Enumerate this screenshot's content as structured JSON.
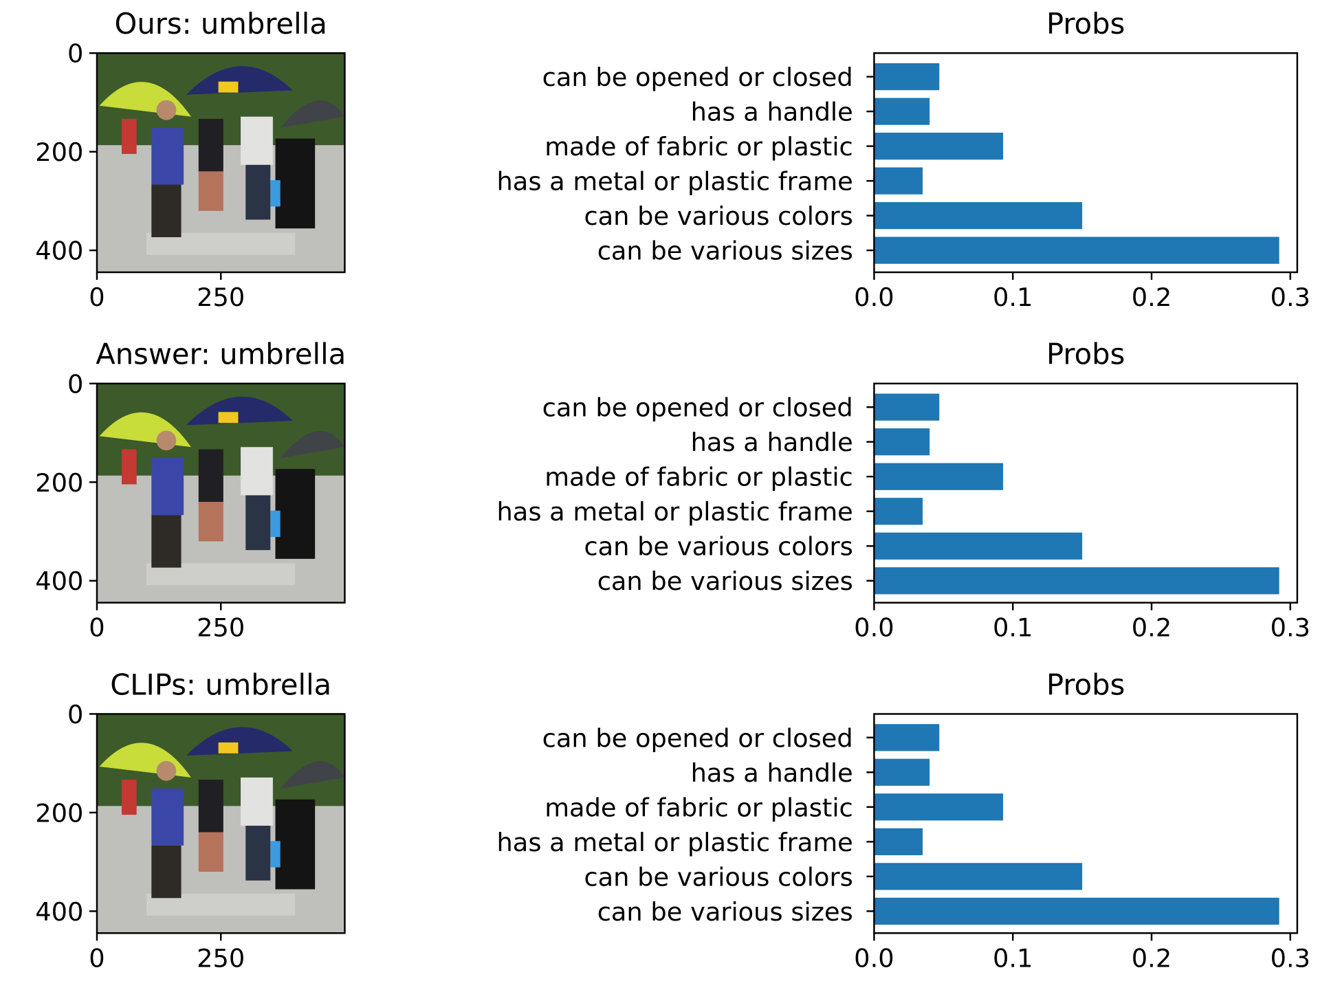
{
  "colors": {
    "bar": "#1f77b4",
    "axis": "#000000",
    "background": "#ffffff"
  },
  "rows": [
    {
      "image_panel": {
        "title": "Ours: umbrella",
        "y_ticks": [
          "0",
          "200",
          "400"
        ],
        "x_ticks": [
          "0",
          "250"
        ]
      },
      "bar_title": "Probs"
    },
    {
      "image_panel": {
        "title": "Answer: umbrella",
        "y_ticks": [
          "0",
          "200",
          "400"
        ],
        "x_ticks": [
          "0",
          "250"
        ]
      },
      "bar_title": "Probs"
    },
    {
      "image_panel": {
        "title": "CLIPs: umbrella",
        "y_ticks": [
          "0",
          "200",
          "400"
        ],
        "x_ticks": [
          "0",
          "250"
        ]
      },
      "bar_title": "Probs"
    }
  ],
  "chart_data": [
    {
      "type": "bar",
      "orientation": "horizontal",
      "title": "Probs",
      "categories": [
        "can be opened or closed",
        "has a handle",
        "made of fabric or plastic",
        "has a metal or plastic frame",
        "can be various colors",
        "can be various sizes"
      ],
      "values": [
        0.047,
        0.04,
        0.093,
        0.035,
        0.15,
        0.292
      ],
      "xlim": [
        0,
        0.305
      ],
      "x_ticks": [
        "0.0",
        "0.1",
        "0.2",
        "0.3"
      ],
      "grid": false
    },
    {
      "type": "bar",
      "orientation": "horizontal",
      "title": "Probs",
      "categories": [
        "can be opened or closed",
        "has a handle",
        "made of fabric or plastic",
        "has a metal or plastic frame",
        "can be various colors",
        "can be various sizes"
      ],
      "values": [
        0.047,
        0.04,
        0.093,
        0.035,
        0.15,
        0.292
      ],
      "xlim": [
        0,
        0.305
      ],
      "x_ticks": [
        "0.0",
        "0.1",
        "0.2",
        "0.3"
      ],
      "grid": false
    },
    {
      "type": "bar",
      "orientation": "horizontal",
      "title": "Probs",
      "categories": [
        "can be opened or closed",
        "has a handle",
        "made of fabric or plastic",
        "has a metal or plastic frame",
        "can be various colors",
        "can be various sizes"
      ],
      "values": [
        0.047,
        0.04,
        0.093,
        0.035,
        0.15,
        0.292
      ],
      "xlim": [
        0,
        0.305
      ],
      "x_ticks": [
        "0.0",
        "0.1",
        "0.2",
        "0.3"
      ],
      "grid": false
    }
  ]
}
